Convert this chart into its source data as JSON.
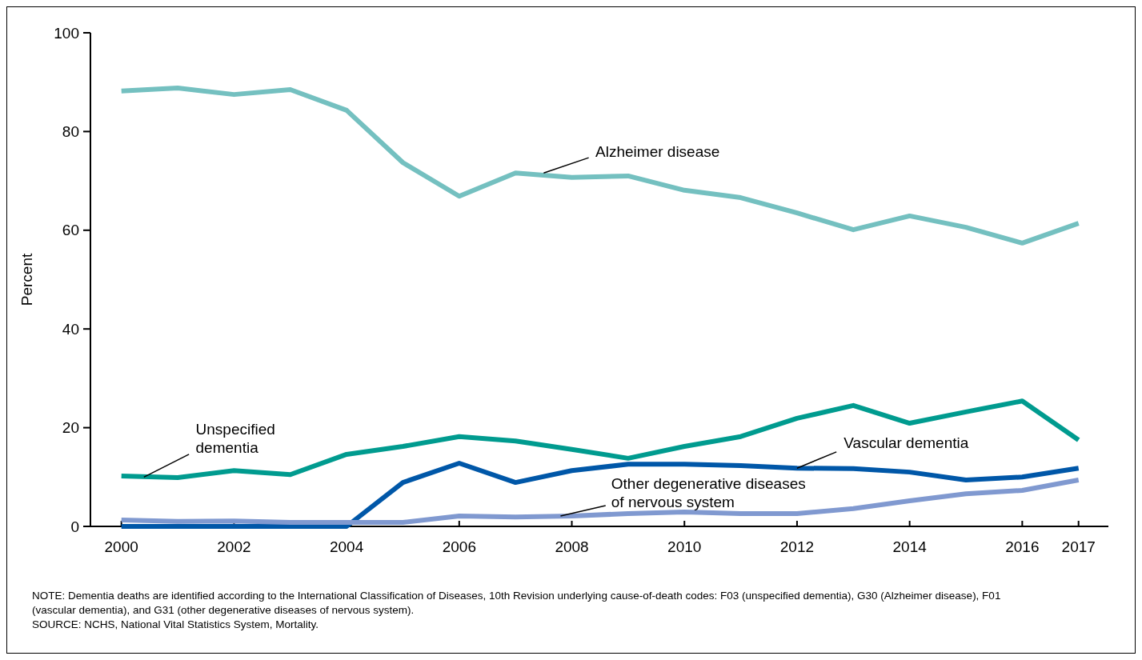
{
  "chart_data": {
    "type": "line",
    "ylabel": "Percent",
    "x": [
      2000,
      2001,
      2002,
      2003,
      2004,
      2005,
      2006,
      2007,
      2008,
      2009,
      2010,
      2011,
      2012,
      2013,
      2014,
      2015,
      2016,
      2017
    ],
    "xlim": [
      1999.45,
      2017.53
    ],
    "xticks": [
      2000,
      2002,
      2004,
      2006,
      2008,
      2010,
      2012,
      2014,
      2016,
      2017
    ],
    "ylim": [
      0,
      100
    ],
    "yticks": [
      0,
      20,
      40,
      60,
      80,
      100
    ],
    "grid": false,
    "marker": "none",
    "line_style": "solid",
    "series": [
      {
        "name": "Alzheimer disease",
        "color": "#74c0c0",
        "values": [
          88.2,
          88.8,
          87.5,
          88.5,
          84.3,
          73.7,
          66.9,
          71.6,
          70.7,
          71.0,
          68.1,
          66.6,
          63.5,
          60.1,
          62.9,
          60.6,
          57.4,
          61.4
        ]
      },
      {
        "name": "Unspecified dementia",
        "color": "#009b8f",
        "values": [
          10.2,
          9.9,
          11.3,
          10.5,
          14.6,
          16.2,
          18.2,
          17.3,
          15.6,
          13.8,
          16.2,
          18.2,
          21.9,
          24.5,
          20.9,
          23.2,
          25.4,
          17.5
        ]
      },
      {
        "name": "Vascular dementia",
        "color": "#0057a8",
        "values": [
          0,
          0,
          0,
          0,
          0,
          8.9,
          12.8,
          8.9,
          11.3,
          12.6,
          12.6,
          12.3,
          11.8,
          11.7,
          11.0,
          9.4,
          10.0,
          11.8
        ]
      },
      {
        "name": "Other degenerative diseases of nervous system",
        "color": "#8099d0",
        "values": [
          1.3,
          1.0,
          1.1,
          0.8,
          0.8,
          0.8,
          2.1,
          1.9,
          2.1,
          2.6,
          2.9,
          2.6,
          2.6,
          3.6,
          5.2,
          6.6,
          7.3,
          9.4
        ]
      }
    ],
    "annotations": [
      "NOTE: Dementia deaths are identified according to the International Classification of Diseases, 10th Revision underlying cause-of-death codes: F03 (unspecified dementia), G30 (Alzheimer disease), F01 (vascular dementia), and G31 (other degenerative diseases of nervous system).",
      "SOURCE: NCHS, National Vital Statistics System, Mortality."
    ]
  }
}
